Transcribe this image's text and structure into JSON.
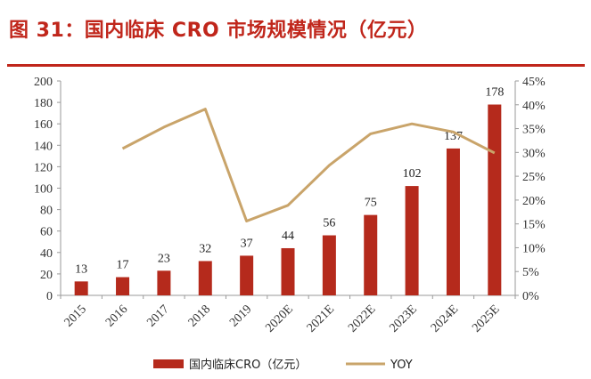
{
  "title": "图 31：国内临床 CRO 市场规模情况（亿元）",
  "chart_data": {
    "type": "bar",
    "categories": [
      "2015",
      "2016",
      "2017",
      "2018",
      "2019",
      "2020E",
      "2021E",
      "2022E",
      "2023E",
      "2024E",
      "2025E"
    ],
    "series": [
      {
        "name": "国内临床CRO（亿元）",
        "type": "bar",
        "axis": "left",
        "color": "#b52a1c",
        "values": [
          13,
          17,
          23,
          32,
          37,
          44,
          56,
          75,
          102,
          137,
          178
        ]
      },
      {
        "name": "YOY",
        "type": "line",
        "axis": "right",
        "color": "#c9a46a",
        "values": [
          null,
          30.8,
          35.3,
          39.1,
          15.6,
          18.9,
          27.3,
          33.9,
          36.0,
          34.3,
          29.9
        ]
      }
    ],
    "left_axis": {
      "ylim": [
        0,
        200
      ],
      "ticks": [
        "0",
        "20",
        "40",
        "60",
        "80",
        "100",
        "120",
        "140",
        "160",
        "180",
        "200"
      ]
    },
    "right_axis": {
      "ylim": [
        0,
        45
      ],
      "ticks": [
        "0%",
        "5%",
        "10%",
        "15%",
        "20%",
        "25%",
        "30%",
        "35%",
        "40%",
        "45%"
      ]
    },
    "legend": [
      "国内临床CRO（亿元）",
      "YOY"
    ],
    "legend_position": "bottom"
  }
}
